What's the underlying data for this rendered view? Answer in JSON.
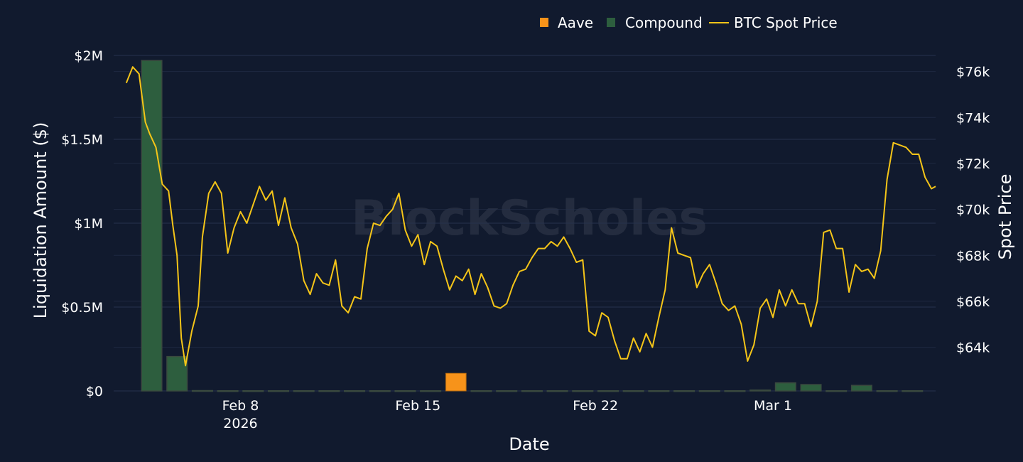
{
  "colors": {
    "background": "#111a2e",
    "grid": "#26324d",
    "aave": "#f7931a",
    "compound": "#2d5e3e",
    "compound_border": "#3a4a3f",
    "btc": "#f5c518",
    "text": "#ffffff"
  },
  "watermark": "BlockScholes",
  "legend": {
    "aave": "Aave",
    "compound": "Compound",
    "btc": "BTC Spot Price"
  },
  "axes": {
    "y_left_title": "Liquidation Amount ($)",
    "y_right_title": "Spot Price",
    "x_title": "Date"
  },
  "chart_data": {
    "type": "bar",
    "title": "",
    "xlabel": "Date",
    "ylabel": "Liquidation Amount ($)",
    "y2label": "Spot Price",
    "legend_position": "top-center",
    "grid": true,
    "ylim": [
      0,
      2000000
    ],
    "y2lim": [
      62100,
      76700
    ],
    "xlim": [
      "2026-02-03",
      "2026-03-07T10:00"
    ],
    "x_ticks": [
      {
        "date": "2026-02-08",
        "label": "Feb 8",
        "sub": "2026"
      },
      {
        "date": "2026-02-15",
        "label": "Feb 15",
        "sub": ""
      },
      {
        "date": "2026-02-22",
        "label": "Feb 22",
        "sub": ""
      },
      {
        "date": "2026-03-01",
        "label": "Mar 1",
        "sub": ""
      }
    ],
    "y_ticks": [
      {
        "value": 0,
        "label": "$0"
      },
      {
        "value": 500000,
        "label": "$0.5M"
      },
      {
        "value": 1000000,
        "label": "$1M"
      },
      {
        "value": 1500000,
        "label": "$1.5M"
      },
      {
        "value": 2000000,
        "label": "$2M"
      }
    ],
    "y2_ticks": [
      {
        "value": 64000,
        "label": "$64k"
      },
      {
        "value": 66000,
        "label": "$66k"
      },
      {
        "value": 68000,
        "label": "$68k"
      },
      {
        "value": 70000,
        "label": "$70k"
      },
      {
        "value": 72000,
        "label": "$72k"
      },
      {
        "value": 74000,
        "label": "$74k"
      },
      {
        "value": 76000,
        "label": "$76k"
      }
    ],
    "categories": [
      "2026-02-04",
      "2026-02-05",
      "2026-02-06",
      "2026-02-07",
      "2026-02-08",
      "2026-02-09",
      "2026-02-10",
      "2026-02-11",
      "2026-02-12",
      "2026-02-13",
      "2026-02-14",
      "2026-02-15",
      "2026-02-16",
      "2026-02-17",
      "2026-02-18",
      "2026-02-19",
      "2026-02-20",
      "2026-02-21",
      "2026-02-22",
      "2026-02-23",
      "2026-02-24",
      "2026-02-25",
      "2026-02-26",
      "2026-02-27",
      "2026-02-28",
      "2026-03-01",
      "2026-03-02",
      "2026-03-03",
      "2026-03-04",
      "2026-03-05",
      "2026-03-06"
    ],
    "series": [
      {
        "name": "Compound",
        "kind": "bar",
        "values": [
          1970000,
          205000,
          2000,
          1000,
          1000,
          1000,
          1000,
          1000,
          1000,
          1000,
          1000,
          1000,
          0,
          1000,
          1000,
          1000,
          1000,
          1000,
          1000,
          1000,
          1000,
          1000,
          1000,
          1000,
          5000,
          48000,
          38000,
          1000,
          33000,
          1000,
          1000
        ]
      },
      {
        "name": "Aave",
        "kind": "bar",
        "values": [
          0,
          0,
          0,
          0,
          0,
          0,
          0,
          0,
          0,
          0,
          0,
          0,
          105000,
          0,
          0,
          0,
          0,
          0,
          0,
          0,
          0,
          0,
          0,
          0,
          0,
          0,
          0,
          0,
          0,
          0,
          0
        ]
      },
      {
        "name": "BTC Spot Price",
        "kind": "line",
        "axis": "y2",
        "x": [
          "2026-02-03T12:00",
          "2026-02-03T18:00",
          "2026-02-04T00:00",
          "2026-02-04T06:00",
          "2026-02-04T10:00",
          "2026-02-04T16:00",
          "2026-02-04T22:00",
          "2026-02-05T04:00",
          "2026-02-05T08:00",
          "2026-02-05T12:00",
          "2026-02-05T16:00",
          "2026-02-05T20:00",
          "2026-02-06T02:00",
          "2026-02-06T08:00",
          "2026-02-06T12:00",
          "2026-02-06T18:00",
          "2026-02-07T00:00",
          "2026-02-07T06:00",
          "2026-02-07T12:00",
          "2026-02-07T18:00",
          "2026-02-08T00:00",
          "2026-02-08T06:00",
          "2026-02-08T12:00",
          "2026-02-08T18:00",
          "2026-02-09T00:00",
          "2026-02-09T06:00",
          "2026-02-09T12:00",
          "2026-02-09T18:00",
          "2026-02-10T00:00",
          "2026-02-10T06:00",
          "2026-02-10T12:00",
          "2026-02-10T18:00",
          "2026-02-11T00:00",
          "2026-02-11T06:00",
          "2026-02-11T12:00",
          "2026-02-11T18:00",
          "2026-02-12T00:00",
          "2026-02-12T06:00",
          "2026-02-12T12:00",
          "2026-02-12T18:00",
          "2026-02-13T00:00",
          "2026-02-13T06:00",
          "2026-02-13T12:00",
          "2026-02-13T18:00",
          "2026-02-14T00:00",
          "2026-02-14T06:00",
          "2026-02-14T12:00",
          "2026-02-14T18:00",
          "2026-02-15T00:00",
          "2026-02-15T06:00",
          "2026-02-15T12:00",
          "2026-02-15T18:00",
          "2026-02-16T00:00",
          "2026-02-16T06:00",
          "2026-02-16T12:00",
          "2026-02-16T18:00",
          "2026-02-17T00:00",
          "2026-02-17T06:00",
          "2026-02-17T12:00",
          "2026-02-17T18:00",
          "2026-02-18T00:00",
          "2026-02-18T06:00",
          "2026-02-18T12:00",
          "2026-02-18T18:00",
          "2026-02-19T00:00",
          "2026-02-19T06:00",
          "2026-02-19T12:00",
          "2026-02-19T18:00",
          "2026-02-20T00:00",
          "2026-02-20T06:00",
          "2026-02-20T12:00",
          "2026-02-20T18:00",
          "2026-02-21T00:00",
          "2026-02-21T06:00",
          "2026-02-21T12:00",
          "2026-02-21T18:00",
          "2026-02-22T00:00",
          "2026-02-22T06:00",
          "2026-02-22T12:00",
          "2026-02-22T18:00",
          "2026-02-23T00:00",
          "2026-02-23T06:00",
          "2026-02-23T12:00",
          "2026-02-23T18:00",
          "2026-02-24T00:00",
          "2026-02-24T06:00",
          "2026-02-24T12:00",
          "2026-02-24T18:00",
          "2026-02-25T00:00",
          "2026-02-25T06:00",
          "2026-02-25T12:00",
          "2026-02-25T18:00",
          "2026-02-26T00:00",
          "2026-02-26T06:00",
          "2026-02-26T12:00",
          "2026-02-26T18:00",
          "2026-02-27T00:00",
          "2026-02-27T06:00",
          "2026-02-27T12:00",
          "2026-02-27T18:00",
          "2026-02-28T00:00",
          "2026-02-28T06:00",
          "2026-02-28T12:00",
          "2026-02-28T18:00",
          "2026-03-01T00:00",
          "2026-03-01T06:00",
          "2026-03-01T12:00",
          "2026-03-01T18:00",
          "2026-03-02T00:00",
          "2026-03-02T06:00",
          "2026-03-02T12:00",
          "2026-03-02T18:00",
          "2026-03-03T00:00",
          "2026-03-03T06:00",
          "2026-03-03T12:00",
          "2026-03-03T18:00",
          "2026-03-04T00:00",
          "2026-03-04T06:00",
          "2026-03-04T12:00",
          "2026-03-04T18:00",
          "2026-03-05T00:00",
          "2026-03-05T06:00",
          "2026-03-05T12:00",
          "2026-03-05T18:00",
          "2026-03-06T00:00",
          "2026-03-06T06:00",
          "2026-03-06T12:00",
          "2026-03-06T18:00",
          "2026-03-07T00:00",
          "2026-03-07T06:00",
          "2026-03-07T10:00"
        ],
        "values": [
          75500,
          76200,
          75900,
          73800,
          73300,
          72700,
          71100,
          70800,
          69300,
          68000,
          64400,
          63200,
          64700,
          65800,
          68800,
          70700,
          71200,
          70700,
          68100,
          69200,
          69900,
          69400,
          70200,
          71000,
          70400,
          70800,
          69300,
          70500,
          69200,
          68500,
          66900,
          66300,
          67200,
          66800,
          66700,
          67800,
          65800,
          65500,
          66200,
          66100,
          68300,
          69400,
          69300,
          69700,
          70000,
          70700,
          69100,
          68400,
          68900,
          67600,
          68600,
          68400,
          67400,
          66500,
          67100,
          66900,
          67400,
          66300,
          67200,
          66600,
          65800,
          65700,
          65900,
          66700,
          67300,
          67400,
          67900,
          68300,
          68300,
          68600,
          68400,
          68800,
          68300,
          67700,
          67800,
          64700,
          64500,
          65500,
          65300,
          64300,
          63500,
          63500,
          64400,
          63800,
          64600,
          64000,
          65300,
          66500,
          69200,
          68100,
          68000,
          67900,
          66600,
          67200,
          67600,
          66800,
          65900,
          65600,
          65800,
          65000,
          63400,
          64100,
          65700,
          66100,
          65300,
          66500,
          65800,
          66500,
          65900,
          65900,
          64900,
          66000,
          69000,
          69100,
          68300,
          68300,
          66400,
          67600,
          67300,
          67400,
          67000,
          68200,
          71300,
          72900,
          72800,
          72700,
          72400,
          72400,
          71400,
          70900,
          71000
        ]
      }
    ]
  }
}
